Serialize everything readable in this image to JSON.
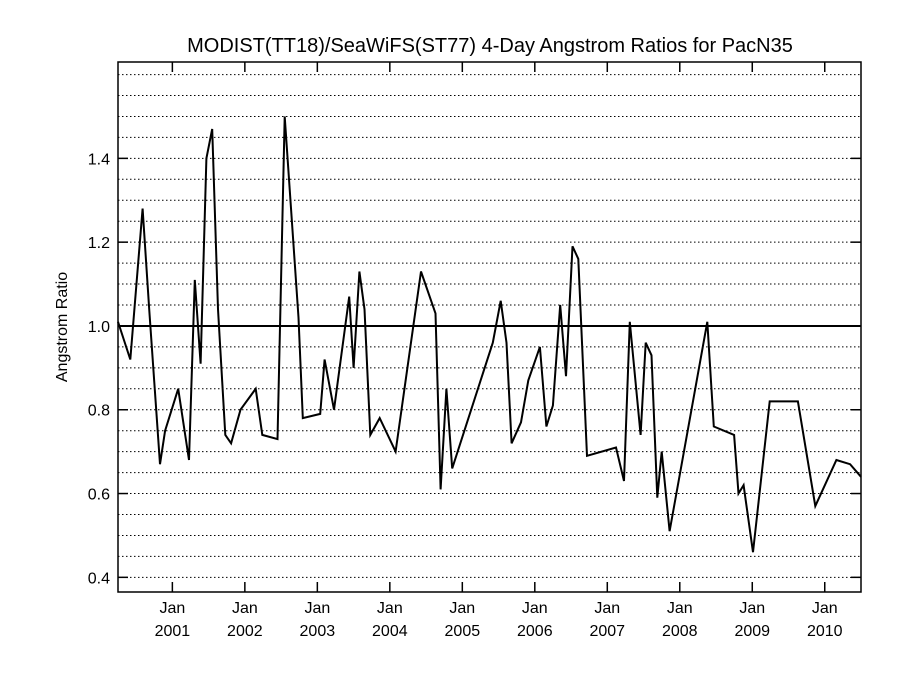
{
  "chart_data": {
    "type": "line",
    "title": "MODIST(TT18)/SeaWiFS(ST77) 4-Day Angstrom Ratios for PacN35",
    "ylabel": "Angstrom Ratio",
    "xlabel": "",
    "ylim": [
      0.365,
      1.63
    ],
    "xlim": [
      2000.25,
      2010.5
    ],
    "yticks": [
      0.4,
      0.6,
      0.8,
      1.0,
      1.2,
      1.4
    ],
    "ytick_labels": [
      "0.4",
      "0.6",
      "0.8",
      "1.0",
      "1.2",
      "1.4"
    ],
    "xticks": [
      {
        "value": 2001,
        "line1": "Jan",
        "line2": "2001"
      },
      {
        "value": 2002,
        "line1": "Jan",
        "line2": "2002"
      },
      {
        "value": 2003,
        "line1": "Jan",
        "line2": "2003"
      },
      {
        "value": 2004,
        "line1": "Jan",
        "line2": "2004"
      },
      {
        "value": 2005,
        "line1": "Jan",
        "line2": "2005"
      },
      {
        "value": 2006,
        "line1": "Jan",
        "line2": "2006"
      },
      {
        "value": 2007,
        "line1": "Jan",
        "line2": "2007"
      },
      {
        "value": 2008,
        "line1": "Jan",
        "line2": "2008"
      },
      {
        "value": 2009,
        "line1": "Jan",
        "line2": "2009"
      },
      {
        "value": 2010,
        "line1": "Jan",
        "line2": "2010"
      }
    ],
    "grid": "horizontal-dotted",
    "grid_step": 0.05,
    "reference_line": 1.0,
    "series": [
      {
        "x": [
          2000.25,
          2000.42,
          2000.59,
          2000.68,
          2000.83,
          2000.9,
          2001.08,
          2001.23,
          2001.31,
          2001.39,
          2001.47,
          2001.55,
          2001.63,
          2001.73,
          2001.81,
          2001.94,
          2002.15,
          2002.24,
          2002.45,
          2002.55,
          2002.74,
          2002.8,
          2003.04,
          2003.1,
          2003.23,
          2003.44,
          2003.5,
          2003.58,
          2003.65,
          2003.73,
          2003.86,
          2004.08,
          2004.43,
          2004.63,
          2004.7,
          2004.78,
          2004.86,
          2005.42,
          2005.53,
          2005.61,
          2005.68,
          2005.81,
          2005.91,
          2006.07,
          2006.16,
          2006.25,
          2006.35,
          2006.43,
          2006.52,
          2006.6,
          2006.72,
          2007.12,
          2007.23,
          2007.31,
          2007.46,
          2007.53,
          2007.61,
          2007.69,
          2007.75,
          2007.86,
          2008.38,
          2008.47,
          2008.75,
          2008.81,
          2008.88,
          2009.01,
          2009.24,
          2009.63,
          2009.87,
          2010.16,
          2010.35,
          2010.5
        ],
        "y": [
          1.01,
          0.92,
          1.28,
          1.04,
          0.67,
          0.75,
          0.85,
          0.68,
          1.11,
          0.91,
          1.4,
          1.47,
          1.04,
          0.74,
          0.72,
          0.8,
          0.85,
          0.74,
          0.73,
          1.5,
          1.02,
          0.78,
          0.79,
          0.92,
          0.8,
          1.07,
          0.9,
          1.13,
          1.04,
          0.74,
          0.78,
          0.7,
          1.13,
          1.03,
          0.61,
          0.85,
          0.66,
          0.96,
          1.06,
          0.96,
          0.72,
          0.77,
          0.87,
          0.95,
          0.76,
          0.81,
          1.05,
          0.88,
          1.19,
          1.16,
          0.69,
          0.71,
          0.63,
          1.01,
          0.74,
          0.96,
          0.93,
          0.59,
          0.7,
          0.51,
          1.01,
          0.76,
          0.74,
          0.6,
          0.62,
          0.46,
          0.82,
          0.82,
          0.57,
          0.68,
          0.67,
          0.64
        ]
      }
    ]
  }
}
